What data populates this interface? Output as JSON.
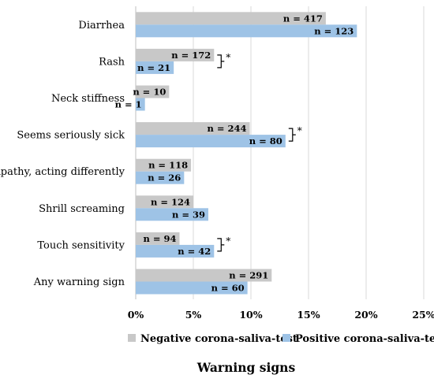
{
  "chart_data": {
    "type": "bar",
    "orientation": "horizontal",
    "categories": [
      "Diarrhea",
      "Rash",
      "Neck stiffness",
      "Seems seriously sick",
      "Apathy, acting differently",
      "Shrill screaming",
      "Touch sensitivity",
      "Any warning sign"
    ],
    "series": [
      {
        "name": "Negative corona-saliva-test",
        "color": "#c8c8c8",
        "values": [
          16.5,
          6.8,
          2.9,
          9.9,
          4.8,
          5.0,
          3.8,
          11.8
        ],
        "labels": [
          "n = 417",
          "n = 172",
          "n = 10",
          "n = 244",
          "n = 118",
          "n = 124",
          "n = 94",
          "n = 291"
        ]
      },
      {
        "name": "Positive corona-saliva-test",
        "color": "#9ec3e6",
        "values": [
          19.2,
          3.3,
          0.8,
          13.0,
          4.2,
          6.3,
          6.8,
          9.7
        ],
        "labels": [
          "n = 123",
          "n = 21",
          "n = 1",
          "n = 80",
          "n = 26",
          "n = 39",
          "n = 42",
          "n = 60"
        ]
      }
    ],
    "significance": [
      {
        "category": "Rash",
        "mark": "*"
      },
      {
        "category": "Seems seriously sick",
        "mark": "*"
      },
      {
        "category": "Touch sensitivity",
        "mark": "*"
      }
    ],
    "xlim": [
      0,
      25
    ],
    "xticks": [
      "0%",
      "5%",
      "10%",
      "15%",
      "20%",
      "25%"
    ],
    "xtick_values": [
      0,
      5,
      10,
      15,
      20,
      25
    ],
    "xlabel": "Warning signs",
    "grid": "vertical",
    "legend": "bottom"
  }
}
